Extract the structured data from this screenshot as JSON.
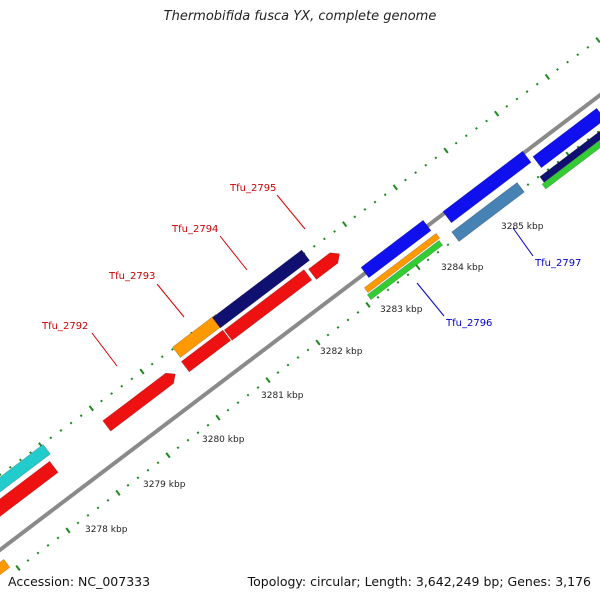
{
  "title": "Thermobifida fusca YX, complete genome",
  "footer": {
    "accession": "Accession: NC_007333",
    "summary": "Topology: circular; Length: 3,642,249 bp; Genes: 3,176"
  },
  "colors": {
    "backbone": "#8a8a8a",
    "ticks": "#1e8a1e",
    "label_forward": "#cc0000",
    "label_reverse": "#0000cc",
    "leader_forward": "#e00000",
    "leader_reverse": "#0000cc"
  },
  "scale_labels": [
    {
      "label": "3278 kbp"
    },
    {
      "label": "3279 kbp"
    },
    {
      "label": "3280 kbp"
    },
    {
      "label": "3281 kbp"
    },
    {
      "label": "3282 kbp"
    },
    {
      "label": "3283 kbp"
    },
    {
      "label": "3284 kbp"
    },
    {
      "label": "3285 kbp"
    }
  ],
  "gene_labels": [
    {
      "label": "Tfu_2792",
      "strand": "forward"
    },
    {
      "label": "Tfu_2793",
      "strand": "forward"
    },
    {
      "label": "Tfu_2794",
      "strand": "forward"
    },
    {
      "label": "Tfu_2795",
      "strand": "forward"
    },
    {
      "label": "Tfu_2796",
      "strand": "reverse"
    },
    {
      "label": "Tfu_2797",
      "strand": "reverse"
    }
  ],
  "features": [
    {
      "name": "gene-block-cyan-left",
      "color": "#22cccc"
    },
    {
      "name": "gene-block-red-left",
      "color": "#ee1111"
    },
    {
      "name": "gene-block-orange-corner",
      "color": "#ff9900"
    },
    {
      "name": "gene-block-red-2792",
      "color": "#ee1111"
    },
    {
      "name": "gene-block-orange-2793",
      "color": "#ff9900"
    },
    {
      "name": "gene-block-red-2793",
      "color": "#ee1111"
    },
    {
      "name": "gene-block-navy-2794",
      "color": "#101070"
    },
    {
      "name": "gene-block-red-2794",
      "color": "#ee1111"
    },
    {
      "name": "gene-block-red-2795",
      "color": "#ee1111"
    },
    {
      "name": "gene-block-blue-2796",
      "color": "#1010ee"
    },
    {
      "name": "gene-block-orange-2796",
      "color": "#ff9900"
    },
    {
      "name": "gene-block-green-2796",
      "color": "#33cc33"
    },
    {
      "name": "gene-block-blue-2797",
      "color": "#1010ee"
    },
    {
      "name": "gene-block-steelblue-2797",
      "color": "#4682b4"
    },
    {
      "name": "gene-block-blue-right",
      "color": "#1010ee"
    },
    {
      "name": "gene-block-navy-right",
      "color": "#101070"
    },
    {
      "name": "gene-block-green-right",
      "color": "#33cc33"
    }
  ]
}
